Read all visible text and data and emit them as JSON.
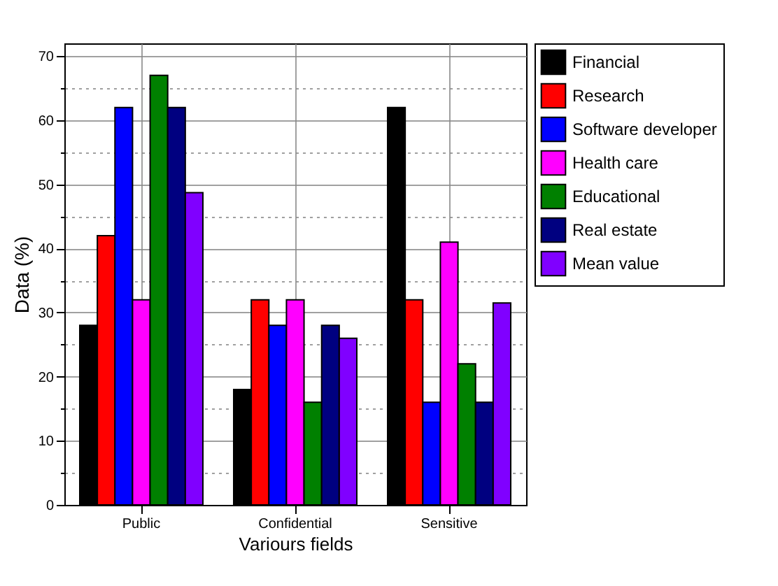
{
  "chart_data": {
    "type": "bar",
    "xlabel": "Variours fields",
    "ylabel": "Data (%)",
    "categories": [
      "Public",
      "Confidential",
      "Sensitive"
    ],
    "series": [
      {
        "name": "Financial",
        "color": "#000000",
        "values": [
          28,
          18,
          62
        ]
      },
      {
        "name": "Research",
        "color": "#ff0000",
        "values": [
          42,
          32,
          32
        ]
      },
      {
        "name": "Software developer",
        "color": "#0000ff",
        "values": [
          62,
          28,
          16
        ]
      },
      {
        "name": "Health care",
        "color": "#ff00ff",
        "values": [
          32,
          32,
          41
        ]
      },
      {
        "name": "Educational",
        "color": "#008000",
        "values": [
          67,
          16,
          22
        ]
      },
      {
        "name": "Real estate",
        "color": "#000080",
        "values": [
          62,
          28,
          16
        ]
      },
      {
        "name": "Mean value",
        "color": "#8000ff",
        "values": [
          48.7,
          26,
          31.5
        ]
      }
    ],
    "ylim": [
      0,
      72
    ],
    "yticks": [
      0,
      {
        "value": 5,
        "label": null
      },
      10,
      {
        "value": 15,
        "label": null
      },
      20,
      {
        "value": 25,
        "label": null
      },
      30,
      {
        "value": 35,
        "label": null
      },
      40,
      {
        "value": 45,
        "label": null
      },
      50,
      {
        "value": 55,
        "label": null
      },
      60,
      {
        "value": 65,
        "label": null
      },
      70
    ],
    "grid": true,
    "legend": "top right"
  }
}
